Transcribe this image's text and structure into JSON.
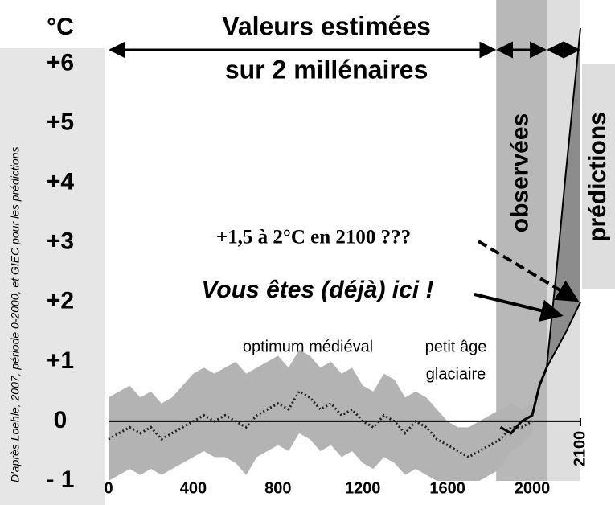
{
  "chart_data": {
    "type": "line",
    "y_unit": "°C",
    "source": "D'après Loehle, 2007, période 0-2000, et GIEC pour les prédictions",
    "x": [
      0,
      50,
      100,
      150,
      200,
      250,
      300,
      350,
      400,
      450,
      500,
      550,
      600,
      650,
      700,
      750,
      800,
      850,
      900,
      950,
      1000,
      1050,
      1100,
      1150,
      1200,
      1250,
      1300,
      1350,
      1400,
      1450,
      1500,
      1550,
      1600,
      1650,
      1700,
      1750,
      1800,
      1850,
      1900,
      1950,
      2000
    ],
    "values": [
      -0.3,
      -0.2,
      -0.1,
      -0.2,
      -0.1,
      -0.3,
      -0.2,
      -0.1,
      0.0,
      0.1,
      0.0,
      0.1,
      0.0,
      -0.1,
      0.1,
      0.2,
      0.3,
      0.2,
      0.5,
      0.4,
      0.2,
      0.3,
      0.1,
      0.2,
      0.0,
      -0.1,
      0.1,
      0.0,
      -0.2,
      0.0,
      -0.1,
      -0.3,
      -0.4,
      -0.5,
      -0.6,
      -0.5,
      -0.4,
      -0.3,
      -0.1,
      -0.1,
      0.0
    ],
    "color": "#222222",
    "band": {
      "upper": [
        0.4,
        0.5,
        0.6,
        0.4,
        0.5,
        0.3,
        0.4,
        0.6,
        0.8,
        0.9,
        0.8,
        0.9,
        1.0,
        0.8,
        0.9,
        1.0,
        1.1,
        0.9,
        1.2,
        1.1,
        0.9,
        1.0,
        0.8,
        0.9,
        0.6,
        0.5,
        0.8,
        0.7,
        0.4,
        0.5,
        0.4,
        0.2,
        0.0,
        -0.1,
        -0.1,
        0.0,
        0.1,
        0.2,
        0.3,
        0.2,
        0.3
      ],
      "lower": [
        -1.0,
        -0.9,
        -0.8,
        -0.9,
        -0.8,
        -0.9,
        -0.8,
        -0.7,
        -0.6,
        -0.5,
        -0.6,
        -0.6,
        -0.7,
        -0.9,
        -0.6,
        -0.5,
        -0.4,
        -0.5,
        -0.2,
        -0.3,
        -0.5,
        -0.4,
        -0.6,
        -0.5,
        -0.7,
        -0.8,
        -0.6,
        -0.7,
        -0.9,
        -0.8,
        -0.9,
        -1.0,
        -1.0,
        -1.0,
        -1.0,
        -1.0,
        -0.9,
        -0.8,
        -0.5,
        -0.4,
        -0.2
      ],
      "color": "#b3b3b3"
    },
    "observed": {
      "x": [
        1850,
        1900,
        1950,
        2000,
        2015,
        2030
      ],
      "values": [
        -0.1,
        -0.2,
        0.0,
        0.1,
        0.6,
        0.9
      ],
      "color": "#000000"
    },
    "predictions": {
      "x": [
        2030,
        2050,
        2070,
        2100
      ],
      "upper": [
        0.9,
        2.5,
        4.2,
        6.6
      ],
      "lower": [
        0.9,
        1.2,
        1.5,
        2.0
      ],
      "color": "#8c8c8c"
    },
    "regions": [
      {
        "label_lines": [
          "Valeurs estimées",
          "sur 2 millénaires"
        ],
        "xlim": [
          0,
          1830
        ]
      },
      {
        "label": "observées",
        "xlim": [
          1830,
          2030
        ],
        "color": "#b8b8b8"
      },
      {
        "label": "prédictions",
        "xlim": [
          2030,
          2100
        ],
        "color": "#dedede"
      }
    ],
    "annotations": {
      "forecast": "+1,5 à 2°C en 2100 ???",
      "here": "Vous êtes (déjà) ici !",
      "medieval": "optimum médiéval",
      "little_ice_age": [
        "petit âge",
        "glaciaire"
      ]
    },
    "xlim": [
      0,
      2100
    ],
    "xticks": [
      0,
      400,
      800,
      1200,
      1600,
      2000,
      2100
    ],
    "ylim": [
      -1,
      6.6
    ],
    "yticks": [
      {
        "value": 6,
        "label": "+6"
      },
      {
        "value": 5,
        "label": "+5"
      },
      {
        "value": 4,
        "label": "+4"
      },
      {
        "value": 3,
        "label": "+3"
      },
      {
        "value": 2,
        "label": "+2"
      },
      {
        "value": 1,
        "label": "+1"
      },
      0,
      {
        "value": -1,
        "label": "- 1"
      }
    ],
    "zero_line": true
  }
}
